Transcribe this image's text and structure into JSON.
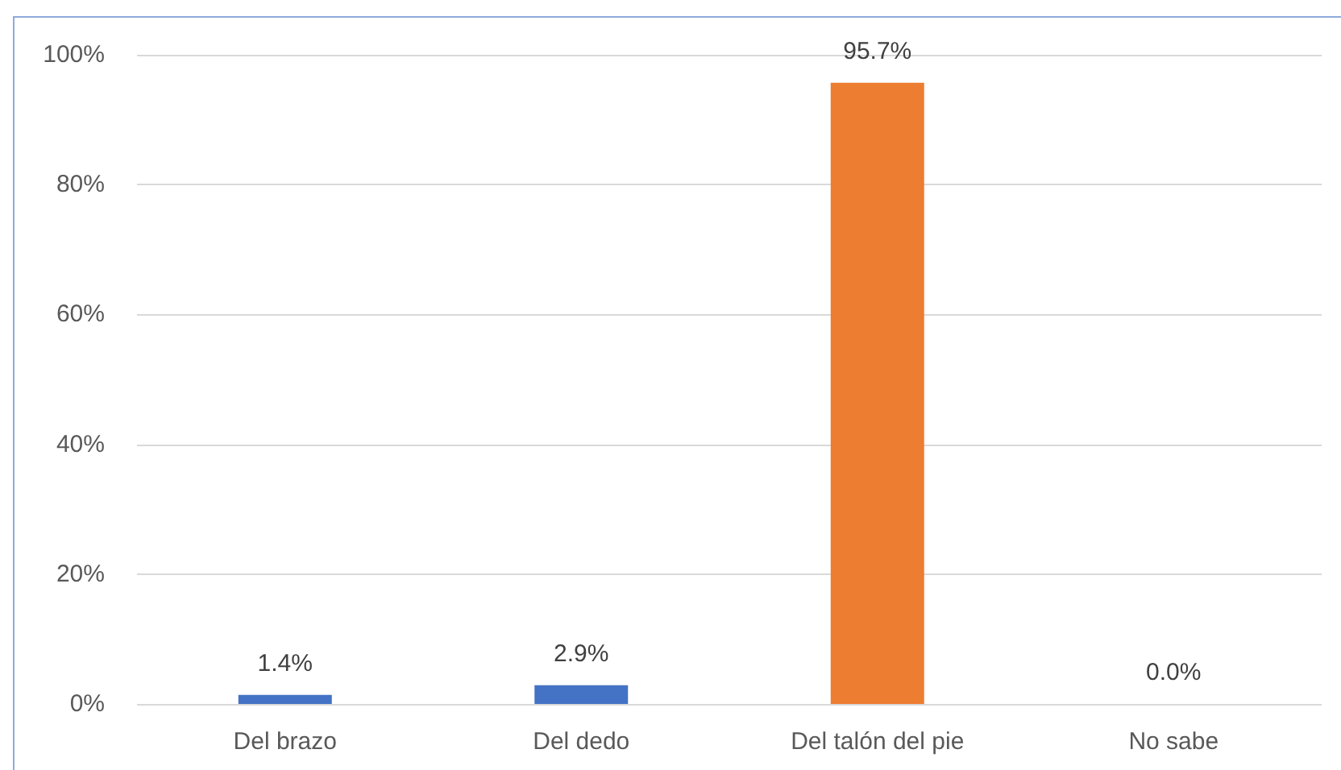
{
  "chart_data": {
    "type": "bar",
    "categories": [
      "Del brazo",
      "Del dedo",
      "Del talón del pie",
      "No sabe"
    ],
    "values": [
      1.4,
      2.9,
      95.7,
      0.0
    ],
    "colors": [
      "#4472c4",
      "#4472c4",
      "#ed7d31",
      "#4472c4"
    ],
    "value_labels": [
      "1.4%",
      "2.9%",
      "95.7%",
      "0.0%"
    ],
    "ylim": [
      0,
      100
    ],
    "yticks": [
      {
        "value": 0,
        "label": "0%"
      },
      {
        "value": 20,
        "label": "20%"
      },
      {
        "value": 40,
        "label": "40%"
      },
      {
        "value": 60,
        "label": "60%"
      },
      {
        "value": 80,
        "label": "80%"
      },
      {
        "value": 100,
        "label": "100%"
      }
    ],
    "grid": "y"
  }
}
